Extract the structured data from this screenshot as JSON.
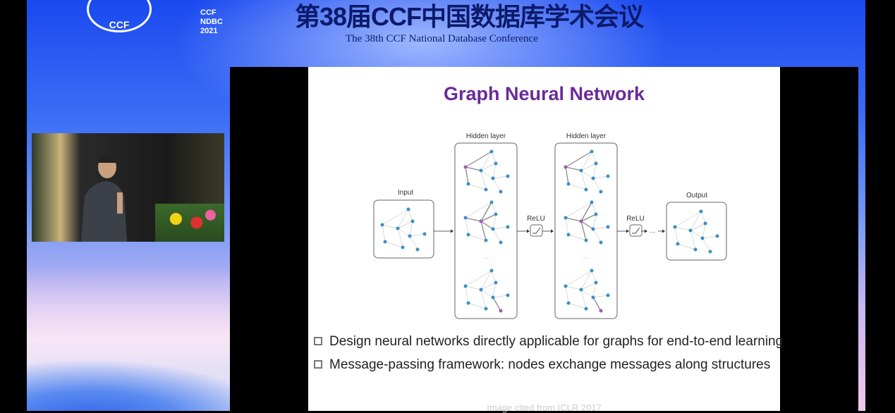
{
  "banner": {
    "logo_ccf": "CCF",
    "logo_ndbc": "CCF NDBC 2021",
    "title_cn": "第38届CCF中国数据库学术会议",
    "title_en": "The 38th CCF National Database Conference"
  },
  "slide": {
    "title": "Graph Neural Network",
    "diagram": {
      "input_label": "Input",
      "hidden_labels": [
        "Hidden layer",
        "Hidden layer"
      ],
      "relu_labels": [
        "ReLU",
        "ReLU"
      ],
      "output_label": "Output",
      "ellipsis": "…",
      "node_color": "#3a8fc8",
      "highlight_color": "#a457b8"
    },
    "bullets": [
      "Design neural networks directly applicable for graphs for end-to-end learning",
      "Message-passing framework: nodes exchange messages along structures"
    ],
    "footer": "Image cited from ICLR 2017",
    "title_color": "#6b2a9a"
  }
}
